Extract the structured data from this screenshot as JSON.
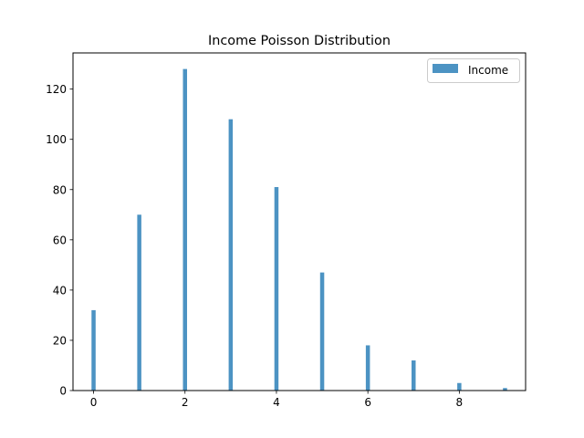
{
  "chart_data": {
    "type": "bar",
    "title": "Income Poisson Distribution",
    "xlabel": "",
    "ylabel": "",
    "series": [
      {
        "name": "Income",
        "color": "#4c93c3",
        "x": [
          0,
          1,
          2,
          3,
          4,
          5,
          6,
          7,
          8,
          9
        ],
        "values": [
          32,
          70,
          128,
          108,
          81,
          47,
          18,
          12,
          3,
          1
        ]
      }
    ],
    "xlim": [
      -0.45,
      9.45
    ],
    "ylim": [
      0,
      134.4
    ],
    "xticks": [
      0,
      2,
      4,
      6,
      8
    ],
    "yticks": [
      0,
      20,
      40,
      60,
      80,
      100,
      120
    ],
    "grid": false,
    "legend": "top-right"
  }
}
